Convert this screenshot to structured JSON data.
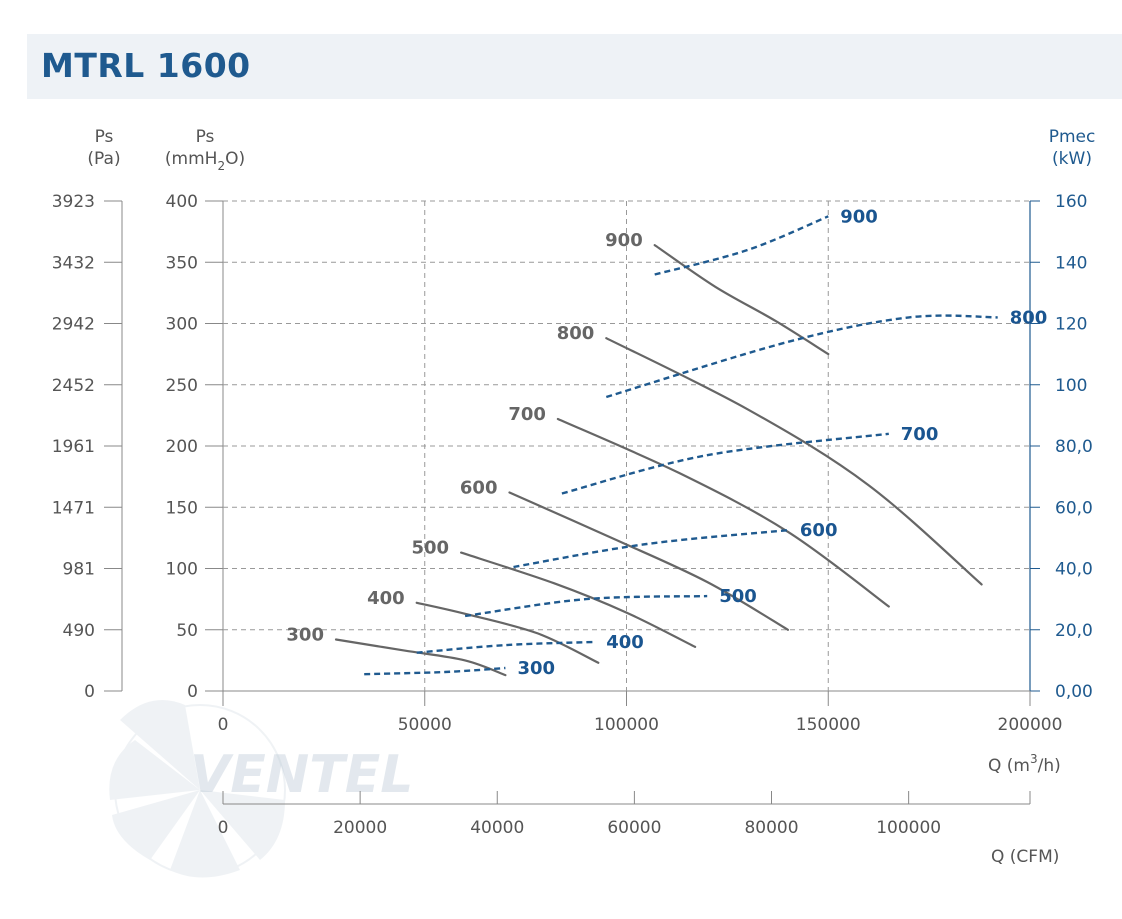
{
  "header": {
    "title": "MTRL 1600"
  },
  "watermark": {
    "brand": "VENTEL"
  },
  "axes": {
    "pa_title": "Ps",
    "pa_unit": "(Pa)",
    "mm_title": "Ps",
    "mm_unit_pre": "(mmH",
    "mm_unit_sub": "2",
    "mm_unit_post": "O)",
    "pw_title": "Pmec",
    "pw_unit": "(kW)",
    "x_m3h_label_pre": "Q (m",
    "x_m3h_label_sup": "3",
    "x_m3h_label_post": "/h)",
    "x_cfm_label": "Q (CFM)"
  },
  "colors": {
    "pressure": "#666666",
    "power": "#1f5a8f",
    "grid": "#999999"
  },
  "chart_data": {
    "type": "line",
    "title": "MTRL 1600",
    "x": {
      "label": "Q (m3/h)",
      "range": [
        0,
        200000
      ],
      "ticks": [
        "0",
        "50000",
        "100000",
        "150000",
        "200000"
      ]
    },
    "x2": {
      "label": "Q (CFM)",
      "range": [
        0,
        117700
      ],
      "ticks": [
        0,
        20000,
        40000,
        60000,
        80000,
        100000
      ],
      "tick_labels": [
        "0",
        "20000",
        "40000",
        "60000",
        "80000",
        "100000"
      ]
    },
    "y_left_mm": {
      "label": "Ps (mmH2O)",
      "range": [
        0,
        400
      ],
      "ticks": [
        "0",
        "50",
        "100",
        "150",
        "200",
        "250",
        "300",
        "350",
        "400"
      ]
    },
    "y_left_pa": {
      "label": "Ps (Pa)",
      "tick_labels": [
        "0",
        "490",
        "981",
        "1471",
        "1961",
        "2452",
        "2942",
        "3432",
        "3923"
      ]
    },
    "y_right": {
      "label": "Pmec (kW)",
      "range": [
        0,
        160
      ],
      "tick_labels": [
        "0,00",
        "20,0",
        "40,0",
        "60,0",
        "80,0",
        "100",
        "120",
        "140",
        "160"
      ]
    },
    "grid_x": [
      50000,
      100000,
      150000
    ],
    "pressure_series": [
      {
        "name": "300",
        "points": [
          [
            28000,
            42
          ],
          [
            45000,
            33
          ],
          [
            60000,
            25
          ],
          [
            70000,
            13
          ]
        ]
      },
      {
        "name": "400",
        "points": [
          [
            48000,
            72
          ],
          [
            60000,
            63
          ],
          [
            78000,
            47
          ],
          [
            93000,
            23
          ]
        ]
      },
      {
        "name": "500",
        "points": [
          [
            59000,
            113
          ],
          [
            82000,
            88
          ],
          [
            100000,
            64
          ],
          [
            117000,
            36
          ]
        ]
      },
      {
        "name": "600",
        "points": [
          [
            71000,
            162
          ],
          [
            97000,
            124
          ],
          [
            120000,
            89
          ],
          [
            140000,
            50
          ]
        ]
      },
      {
        "name": "700",
        "points": [
          [
            83000,
            222
          ],
          [
            113000,
            178
          ],
          [
            140000,
            130
          ],
          [
            165000,
            69
          ]
        ]
      },
      {
        "name": "800",
        "points": [
          [
            95000,
            288
          ],
          [
            130000,
            230
          ],
          [
            160000,
            168
          ],
          [
            188000,
            87
          ]
        ]
      },
      {
        "name": "900",
        "points": [
          [
            107000,
            364
          ],
          [
            122000,
            330
          ],
          [
            137000,
            302
          ],
          [
            150000,
            275
          ]
        ]
      }
    ],
    "power_series": [
      {
        "name": "300",
        "points": [
          [
            35000,
            5.5
          ],
          [
            55000,
            6.2
          ],
          [
            70000,
            7.5
          ]
        ]
      },
      {
        "name": "400",
        "points": [
          [
            48000,
            12.5
          ],
          [
            70000,
            15.0
          ],
          [
            92000,
            16.0
          ]
        ]
      },
      {
        "name": "500",
        "points": [
          [
            60000,
            24.5
          ],
          [
            90000,
            30.0
          ],
          [
            120000,
            31.0
          ]
        ]
      },
      {
        "name": "600",
        "points": [
          [
            72000,
            40.5
          ],
          [
            105000,
            48.0
          ],
          [
            140000,
            52.5
          ]
        ]
      },
      {
        "name": "700",
        "points": [
          [
            84000,
            64.5
          ],
          [
            120000,
            77.0
          ],
          [
            165000,
            84.0
          ]
        ]
      },
      {
        "name": "800",
        "points": [
          [
            95000,
            96.0
          ],
          [
            140000,
            114.0
          ],
          [
            170000,
            122.0
          ],
          [
            192000,
            122.0
          ]
        ]
      },
      {
        "name": "900",
        "points": [
          [
            107000,
            136.0
          ],
          [
            130000,
            144.0
          ],
          [
            150000,
            155.0
          ]
        ]
      }
    ]
  }
}
